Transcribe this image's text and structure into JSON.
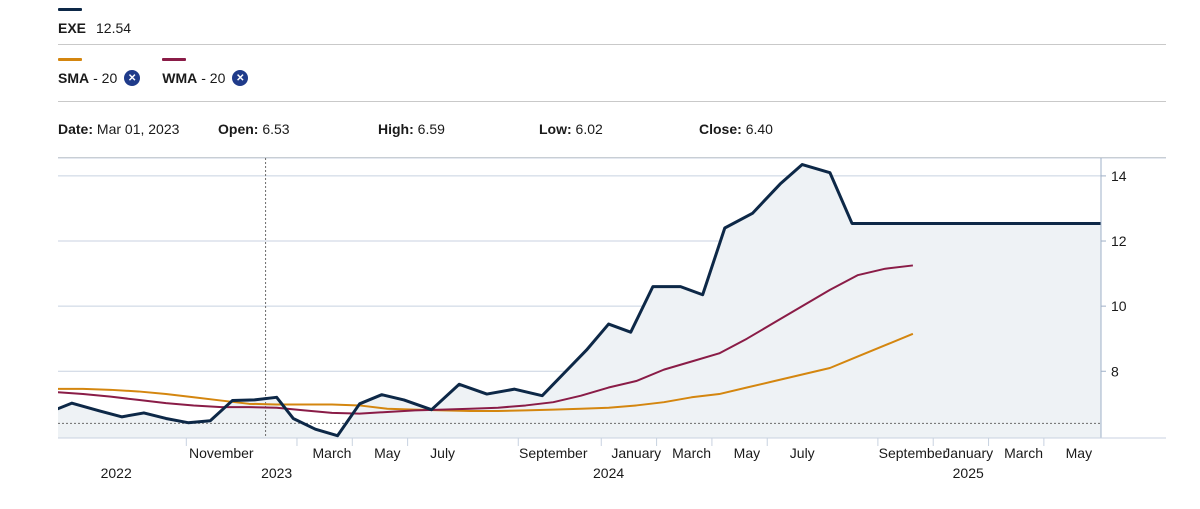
{
  "legend": {
    "main": {
      "symbol": "EXE",
      "value": "12.54",
      "color": "#0d2847",
      "icon": "line-swatch"
    },
    "indicators": [
      {
        "symbol": "SMA",
        "period": "- 20",
        "color": "#d4860f",
        "remove_icon": "close-circle-icon"
      },
      {
        "symbol": "WMA",
        "period": "- 20",
        "color": "#8a1c47",
        "remove_icon": "close-circle-icon"
      }
    ]
  },
  "ohlc": {
    "date_label": "Date:",
    "date": "Mar 01, 2023",
    "open_label": "Open:",
    "open": "6.53",
    "high_label": "High:",
    "high": "6.59",
    "low_label": "Low:",
    "low": "6.02",
    "close_label": "Close:",
    "close": "6.40"
  },
  "chart_data": {
    "type": "line",
    "title": "",
    "xlabel": "",
    "ylabel": "",
    "ylim": [
      5.95,
      14.55
    ],
    "y_ticks": [
      8,
      10,
      12,
      14
    ],
    "grid": true,
    "x_axis_labels": [
      {
        "x": 0.6,
        "month": "",
        "year": "2022"
      },
      {
        "x": 2.5,
        "month": "November",
        "year": ""
      },
      {
        "x": 3.5,
        "month": "",
        "year": "2023"
      },
      {
        "x": 4.5,
        "month": "March",
        "year": ""
      },
      {
        "x": 5.5,
        "month": "May",
        "year": ""
      },
      {
        "x": 6.5,
        "month": "July",
        "year": ""
      },
      {
        "x": 8.5,
        "month": "September",
        "year": ""
      },
      {
        "x": 9.5,
        "month": "",
        "year": "2024"
      },
      {
        "x": 10.0,
        "month": "January",
        "year": ""
      },
      {
        "x": 11.0,
        "month": "March",
        "year": ""
      },
      {
        "x": 12.0,
        "month": "May",
        "year": ""
      },
      {
        "x": 13.0,
        "month": "July",
        "year": ""
      },
      {
        "x": 15.0,
        "month": "September",
        "year": ""
      },
      {
        "x": 16.0,
        "month": "January",
        "year": ""
      },
      {
        "x": 16.0,
        "month": "",
        "year": "2025"
      },
      {
        "x": 17.0,
        "month": "March",
        "year": ""
      },
      {
        "x": 18.0,
        "month": "May",
        "year": ""
      }
    ],
    "crosshair": {
      "x": 3.3,
      "y": 6.4
    },
    "series": [
      {
        "name": "EXE",
        "color": "#0d2847",
        "fill": "#eef2f5",
        "x": [
          -1,
          -0.6,
          -0.2,
          0.3,
          0.7,
          1.1,
          1.5,
          1.9,
          2.3,
          2.7,
          3.1,
          3.5,
          3.8,
          4.2,
          4.6,
          5.0,
          5.4,
          5.8,
          6.3,
          6.8,
          7.3,
          7.8,
          8.3,
          8.7,
          9.1,
          9.5,
          9.9,
          10.3,
          10.8,
          11.2,
          11.6,
          12.1,
          12.6,
          13.0,
          13.5,
          13.9,
          14.4,
          14.8,
          15.2,
          15.6,
          16.0,
          16.4,
          16.8,
          17.2,
          17.6,
          18.0,
          18.4
        ],
        "y": [
          7.22,
          6.75,
          7.02,
          6.78,
          6.6,
          6.72,
          6.55,
          6.42,
          6.48,
          7.1,
          7.12,
          7.2,
          6.55,
          6.22,
          6.02,
          7.0,
          7.28,
          7.12,
          6.82,
          7.6,
          7.3,
          7.45,
          7.25,
          7.95,
          8.65,
          9.45,
          9.2,
          10.6,
          10.6,
          10.35,
          12.4,
          12.85,
          13.75,
          14.35,
          14.1,
          12.54,
          12.54,
          12.54,
          12.54,
          12.54,
          12.54,
          12.54,
          12.54,
          12.54,
          12.54,
          12.54,
          12.54
        ]
      },
      {
        "name": "SMA - 20",
        "color": "#d4860f",
        "x": [
          -1,
          -0.5,
          0.0,
          0.5,
          1.0,
          1.5,
          2.0,
          2.5,
          3.0,
          3.5,
          4.0,
          4.5,
          5.0,
          5.5,
          6.0,
          6.5,
          7.0,
          7.5,
          8.0,
          8.5,
          9.0,
          9.5,
          10.0,
          10.5,
          11.0,
          11.5,
          12.0,
          12.5,
          13.0,
          13.5,
          14.0,
          14.5,
          15.0
        ],
        "y": [
          7.42,
          7.46,
          7.46,
          7.43,
          7.38,
          7.3,
          7.2,
          7.1,
          7.0,
          6.98,
          6.98,
          6.98,
          6.95,
          6.85,
          6.82,
          6.8,
          6.78,
          6.78,
          6.8,
          6.82,
          6.85,
          6.88,
          6.95,
          7.05,
          7.2,
          7.3,
          7.5,
          7.7,
          7.9,
          8.1,
          8.45,
          8.8,
          9.15
        ]
      },
      {
        "name": "WMA - 20",
        "color": "#8a1c47",
        "x": [
          -1,
          -0.5,
          0.0,
          0.5,
          1.0,
          1.5,
          2.0,
          2.5,
          3.0,
          3.5,
          4.0,
          4.5,
          5.0,
          5.5,
          6.0,
          6.5,
          7.0,
          7.5,
          8.0,
          8.5,
          9.0,
          9.5,
          10.0,
          10.5,
          11.0,
          11.5,
          12.0,
          12.5,
          13.0,
          13.5,
          14.0,
          14.5,
          15.0
        ],
        "y": [
          7.4,
          7.36,
          7.3,
          7.22,
          7.12,
          7.02,
          6.95,
          6.9,
          6.9,
          6.88,
          6.8,
          6.72,
          6.7,
          6.75,
          6.8,
          6.82,
          6.85,
          6.88,
          6.95,
          7.05,
          7.25,
          7.5,
          7.7,
          8.05,
          8.3,
          8.55,
          9.0,
          9.5,
          10.0,
          10.5,
          10.95,
          11.15,
          11.25
        ]
      }
    ]
  }
}
